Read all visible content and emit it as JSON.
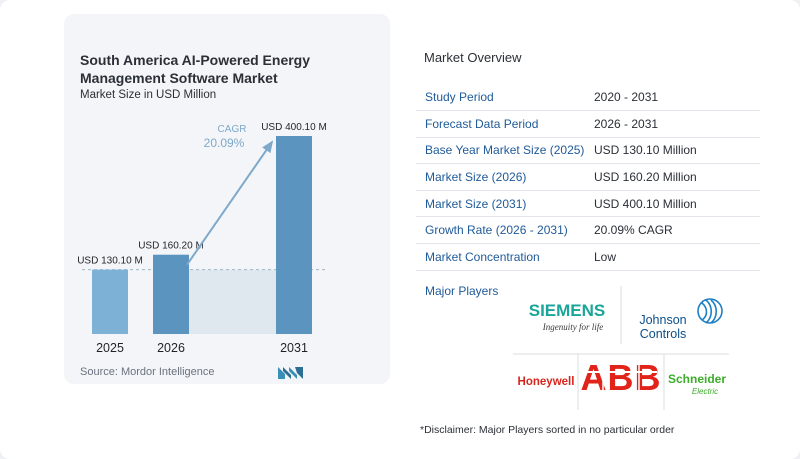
{
  "chart_data": {
    "type": "bar",
    "title": "South America AI-Powered Energy Management Software Market",
    "subtitle": "Market Size in USD Million",
    "categories": [
      "2025",
      "2026",
      "2031"
    ],
    "values": [
      130.1,
      160.2,
      400.1
    ],
    "value_labels": [
      "USD 130.10 M",
      "USD 160.20 M",
      "USD 400.10 M"
    ],
    "cagr_label": "CAGR",
    "cagr_value": "20.09%",
    "ylim": [
      0,
      400.1
    ],
    "bar_color": "#5b95bf",
    "bar_color_light": "#7db1d6",
    "arrow_color": "#7ea9cb"
  },
  "source": "Source:  Mordor Intelligence",
  "overview": {
    "title": "Market Overview",
    "rows": [
      {
        "label": "Study Period",
        "value": "2020 - 2031"
      },
      {
        "label": "Forecast Data Period",
        "value": "2026 - 2031"
      },
      {
        "label": "Base Year Market Size (2025)",
        "value": "USD 130.10 Million"
      },
      {
        "label": "Market Size (2026)",
        "value": "USD 160.20 Million"
      },
      {
        "label": "Market Size (2031)",
        "value": "USD 400.10 Million"
      },
      {
        "label": "Growth Rate (2026 - 2031)",
        "value": "20.09% CAGR"
      },
      {
        "label": "Market Concentration",
        "value": "Low"
      }
    ],
    "players_label": "Major Players",
    "disclaimer": "*Disclaimer: Major Players sorted in no particular order"
  },
  "logos": {
    "siemens": "SIEMENS",
    "siemens_tag": "Ingenuity for life",
    "johnson_1": "Johnson",
    "johnson_2": "Controls",
    "honeywell": "Honeywell",
    "abb": "ABB",
    "schneider_1": "Schneider",
    "schneider_2": "Electric"
  }
}
